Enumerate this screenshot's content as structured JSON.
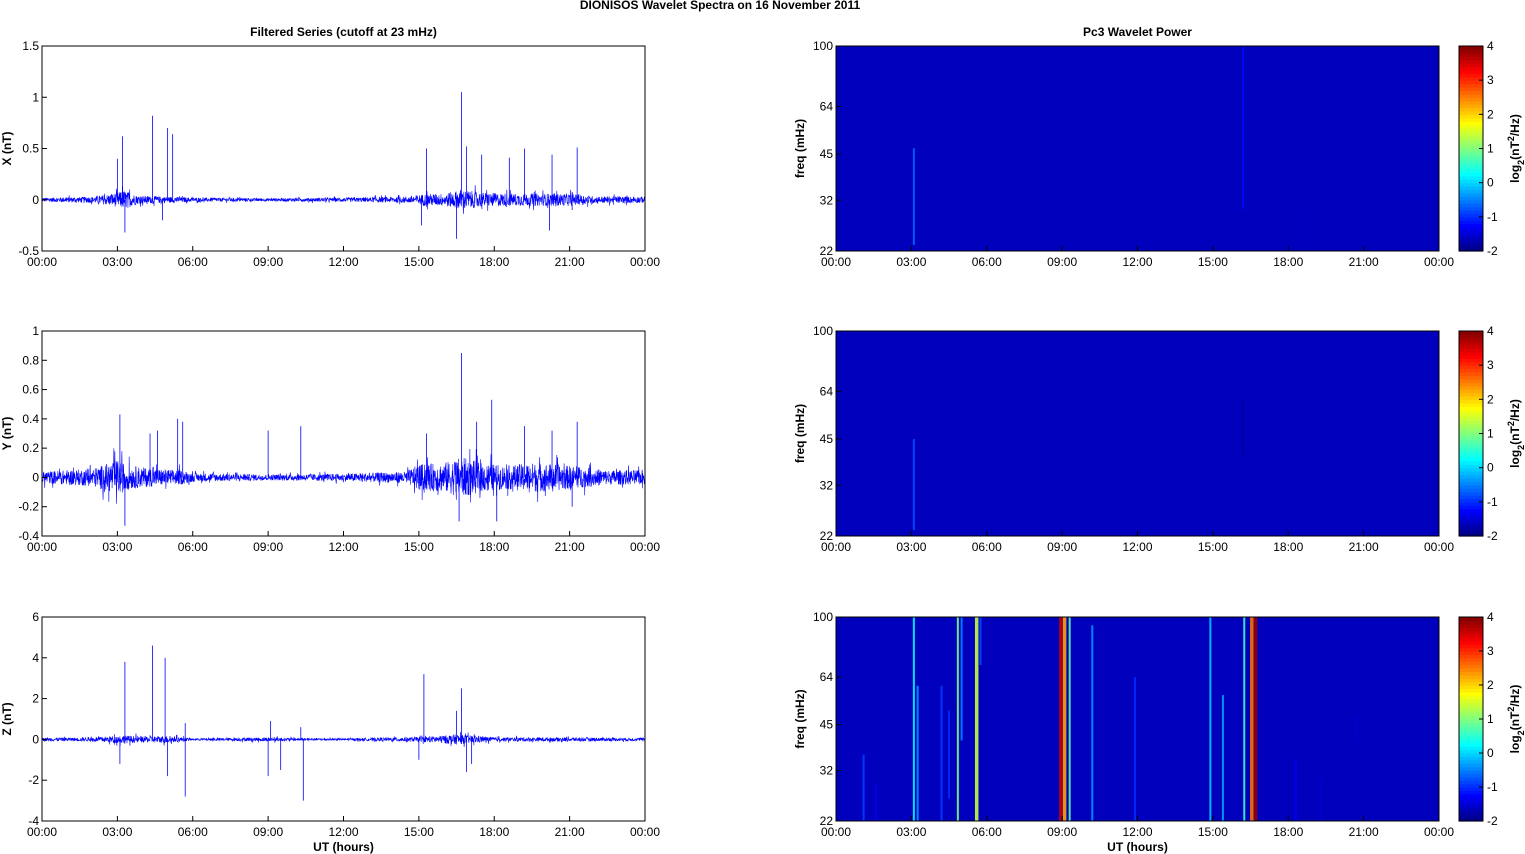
{
  "figure_title": "DIONISOS Wavelet Spectra on 16 November  2011",
  "time_ticks": [
    "00:00",
    "03:00",
    "06:00",
    "09:00",
    "12:00",
    "15:00",
    "18:00",
    "21:00",
    "00:00"
  ],
  "xlabel": "UT (hours)",
  "chart_data": [
    {
      "type": "line",
      "title": "Filtered Series (cutoff at 23 mHz)",
      "ylabel": "X (nT)",
      "xlim": [
        0,
        24
      ],
      "ylim": [
        -0.5,
        1.5
      ],
      "yticks": [
        "-0.5",
        "0",
        "0.5",
        "1",
        "1.5"
      ],
      "yticks_values": [
        -0.5,
        0,
        0.5,
        1,
        1.5
      ],
      "color": "#0000ff",
      "noise": [
        [
          0,
          0.02
        ],
        [
          1,
          0.025
        ],
        [
          2,
          0.03
        ],
        [
          2.8,
          0.06
        ],
        [
          3.3,
          0.09
        ],
        [
          3.8,
          0.04
        ],
        [
          5,
          0.03
        ],
        [
          6,
          0.02
        ],
        [
          9,
          0.015
        ],
        [
          12,
          0.02
        ],
        [
          14.5,
          0.03
        ],
        [
          15.3,
          0.06
        ],
        [
          16,
          0.06
        ],
        [
          16.7,
          0.1
        ],
        [
          17.5,
          0.07
        ],
        [
          19,
          0.06
        ],
        [
          20,
          0.06
        ],
        [
          21,
          0.06
        ],
        [
          22,
          0.035
        ],
        [
          24,
          0.03
        ]
      ],
      "spikes": [
        [
          3.2,
          0.62
        ],
        [
          3.0,
          0.4
        ],
        [
          3.3,
          -0.32
        ],
        [
          4.4,
          0.82
        ],
        [
          5.0,
          0.7
        ],
        [
          5.2,
          0.64
        ],
        [
          4.8,
          -0.2
        ],
        [
          15.3,
          0.5
        ],
        [
          15.1,
          -0.25
        ],
        [
          16.7,
          1.05
        ],
        [
          16.5,
          -0.38
        ],
        [
          16.9,
          0.52
        ],
        [
          17.5,
          0.44
        ],
        [
          18.6,
          0.41
        ],
        [
          19.2,
          0.5
        ],
        [
          20.3,
          0.44
        ],
        [
          20.2,
          -0.3
        ],
        [
          21.3,
          0.51
        ],
        [
          21.1,
          -0.1
        ]
      ]
    },
    {
      "type": "heatmap",
      "title": "Pc3 Wavelet Power",
      "ylabel": "freq (mHz)",
      "xlim": [
        0,
        24
      ],
      "ylim": [
        22,
        100
      ],
      "ytick_labels": [
        "22",
        "32",
        "45",
        "64",
        "100"
      ],
      "yticks_values": [
        22,
        32,
        45,
        64,
        100
      ],
      "background_level": -2,
      "streaks": [
        [
          3.1,
          47,
          23,
          -0.7
        ],
        [
          16.2,
          100,
          30,
          -1.2
        ],
        [
          18.4,
          30,
          22,
          -1.6
        ]
      ],
      "colorbar": {
        "label": "log2(nT2/Hz)",
        "ticks": [
          "-2",
          "-1",
          "0",
          "1",
          "2",
          "3",
          "4"
        ],
        "ticks_values": [
          -2,
          -1,
          0,
          1,
          2,
          3,
          4
        ],
        "range": [
          -2,
          4
        ]
      }
    },
    {
      "type": "line",
      "title": "",
      "ylabel": "Y (nT)",
      "xlim": [
        0,
        24
      ],
      "ylim": [
        -0.4,
        1
      ],
      "yticks": [
        "-0.4",
        "-0.2",
        "0",
        "0.2",
        "0.4",
        "0.6",
        "0.8",
        "1"
      ],
      "yticks_values": [
        -0.4,
        -0.2,
        0,
        0.2,
        0.4,
        0.6,
        0.8,
        1
      ],
      "color": "#0000ff",
      "noise": [
        [
          0,
          0.04
        ],
        [
          1,
          0.05
        ],
        [
          2,
          0.06
        ],
        [
          3,
          0.12
        ],
        [
          3.5,
          0.08
        ],
        [
          4.5,
          0.06
        ],
        [
          5.5,
          0.05
        ],
        [
          6,
          0.03
        ],
        [
          9,
          0.02
        ],
        [
          12,
          0.025
        ],
        [
          14.5,
          0.04
        ],
        [
          15,
          0.09
        ],
        [
          16,
          0.1
        ],
        [
          16.7,
          0.14
        ],
        [
          17.5,
          0.1
        ],
        [
          18.5,
          0.08
        ],
        [
          19.5,
          0.1
        ],
        [
          20.5,
          0.09
        ],
        [
          21.5,
          0.07
        ],
        [
          22.5,
          0.05
        ],
        [
          24,
          0.05
        ]
      ],
      "spikes": [
        [
          3.1,
          0.43
        ],
        [
          3.3,
          -0.33
        ],
        [
          4.3,
          0.3
        ],
        [
          4.6,
          0.32
        ],
        [
          5.4,
          0.4
        ],
        [
          5.6,
          0.38
        ],
        [
          9.0,
          0.32
        ],
        [
          10.3,
          0.35
        ],
        [
          15.3,
          0.3
        ],
        [
          16.7,
          0.85
        ],
        [
          16.6,
          -0.3
        ],
        [
          17.3,
          0.38
        ],
        [
          17.9,
          0.53
        ],
        [
          18.1,
          -0.3
        ],
        [
          19.2,
          0.35
        ],
        [
          20.3,
          0.32
        ],
        [
          21.3,
          0.38
        ],
        [
          21.1,
          -0.2
        ]
      ]
    },
    {
      "type": "heatmap",
      "title": "",
      "ylabel": "freq (mHz)",
      "xlim": [
        0,
        24
      ],
      "ylim": [
        22,
        100
      ],
      "ytick_labels": [
        "22",
        "32",
        "45",
        "64",
        "100"
      ],
      "yticks_values": [
        22,
        32,
        45,
        64,
        100
      ],
      "background_level": -2,
      "streaks": [
        [
          3.1,
          45,
          23,
          -0.8
        ],
        [
          16.2,
          60,
          40,
          -1.8
        ]
      ],
      "colorbar": {
        "label": "log2(nT2/Hz)",
        "ticks": [
          "-2",
          "-1",
          "0",
          "1",
          "2",
          "3",
          "4"
        ],
        "ticks_values": [
          -2,
          -1,
          0,
          1,
          2,
          3,
          4
        ],
        "range": [
          -2,
          4
        ]
      }
    },
    {
      "type": "line",
      "title": "",
      "ylabel": "Z (nT)",
      "xlim": [
        0,
        24
      ],
      "ylim": [
        -4,
        6
      ],
      "yticks": [
        "-4",
        "-2",
        "0",
        "2",
        "4",
        "6"
      ],
      "yticks_values": [
        -4,
        -2,
        0,
        2,
        4,
        6
      ],
      "color": "#0000ff",
      "noise": [
        [
          0,
          0.08
        ],
        [
          2,
          0.1
        ],
        [
          3.2,
          0.2
        ],
        [
          4,
          0.15
        ],
        [
          5,
          0.18
        ],
        [
          6,
          0.05
        ],
        [
          9,
          0.1
        ],
        [
          10.5,
          0.06
        ],
        [
          12,
          0.05
        ],
        [
          15,
          0.12
        ],
        [
          15.5,
          0.15
        ],
        [
          16.5,
          0.25
        ],
        [
          17,
          0.2
        ],
        [
          18,
          0.1
        ],
        [
          20,
          0.1
        ],
        [
          21,
          0.1
        ],
        [
          24,
          0.07
        ]
      ],
      "spikes": [
        [
          3.3,
          3.8
        ],
        [
          3.1,
          -1.2
        ],
        [
          4.4,
          4.6
        ],
        [
          4.9,
          4.0
        ],
        [
          5.0,
          -1.8
        ],
        [
          5.7,
          -2.8
        ],
        [
          5.7,
          0.8
        ],
        [
          9.1,
          0.9
        ],
        [
          9.0,
          -1.8
        ],
        [
          9.5,
          -1.5
        ],
        [
          10.4,
          -3.0
        ],
        [
          10.3,
          0.6
        ],
        [
          15.2,
          3.2
        ],
        [
          15.0,
          -1.0
        ],
        [
          16.7,
          2.5
        ],
        [
          16.9,
          -1.6
        ],
        [
          16.5,
          1.4
        ],
        [
          17.1,
          -1.2
        ]
      ]
    },
    {
      "type": "heatmap",
      "title": "",
      "ylabel": "freq (mHz)",
      "xlim": [
        0,
        24
      ],
      "ylim": [
        22,
        100
      ],
      "ytick_labels": [
        "22",
        "32",
        "45",
        "64",
        "100"
      ],
      "yticks_values": [
        22,
        32,
        45,
        64,
        100
      ],
      "background_level": -2,
      "streaks": [
        [
          1.1,
          36,
          22,
          -0.9
        ],
        [
          1.6,
          29,
          22,
          -1.4
        ],
        [
          3.1,
          100,
          22,
          0.2
        ],
        [
          3.25,
          60,
          22,
          -0.4
        ],
        [
          4.2,
          60,
          22,
          -0.9
        ],
        [
          4.5,
          50,
          26,
          -1.0
        ],
        [
          4.85,
          100,
          22,
          1.0
        ],
        [
          5.0,
          100,
          40,
          -0.5
        ],
        [
          5.6,
          100,
          22,
          1.4
        ],
        [
          5.75,
          100,
          70,
          -0.8
        ],
        [
          8.95,
          100,
          22,
          3.6
        ],
        [
          9.1,
          100,
          22,
          2.3
        ],
        [
          9.3,
          100,
          22,
          0.8
        ],
        [
          10.2,
          94,
          22,
          -0.4
        ],
        [
          11.9,
          64,
          22,
          -1.0
        ],
        [
          14.9,
          100,
          22,
          -0.1
        ],
        [
          15.4,
          56,
          22,
          -0.3
        ],
        [
          16.25,
          100,
          22,
          0.6
        ],
        [
          16.55,
          100,
          22,
          2.6
        ],
        [
          16.7,
          100,
          22,
          3.9
        ],
        [
          18.3,
          35,
          22,
          -1.3
        ],
        [
          19.3,
          30,
          22,
          -1.5
        ],
        [
          20.7,
          48,
          40,
          -1.5
        ]
      ],
      "colorbar": {
        "label": "log2(nT2/Hz)",
        "ticks": [
          "-2",
          "-1",
          "0",
          "1",
          "2",
          "3",
          "4"
        ],
        "ticks_values": [
          -2,
          -1,
          0,
          1,
          2,
          3,
          4
        ],
        "range": [
          -2,
          4
        ]
      }
    }
  ]
}
